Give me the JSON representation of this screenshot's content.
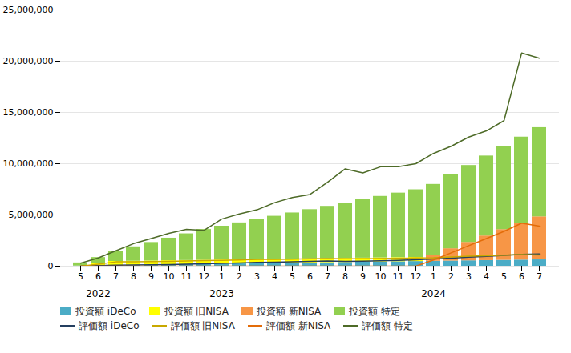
{
  "chart_data": {
    "type": "bar",
    "stacked": true,
    "grid": true,
    "legend": "bottom",
    "categories": [
      "5",
      "6",
      "7",
      "8",
      "9",
      "10",
      "11",
      "12",
      "1",
      "2",
      "3",
      "4",
      "5",
      "6",
      "7",
      "8",
      "9",
      "10",
      "11",
      "12",
      "1",
      "2",
      "3",
      "4",
      "5",
      "6",
      "7"
    ],
    "annotations": [
      {
        "text": "2022",
        "x": 1
      },
      {
        "text": "2023",
        "x": 8
      },
      {
        "text": "2024",
        "x": 20
      }
    ],
    "ylim": [
      0,
      25000000
    ],
    "yticks": [
      0,
      {
        "value": 5000000,
        "label": "5,000,000"
      },
      {
        "value": 10000000,
        "label": "10,000,000"
      },
      {
        "value": 15000000,
        "label": "15,000,000"
      },
      {
        "value": 20000000,
        "label": "20,000,000"
      },
      {
        "value": 25000000,
        "label": "25,000,000"
      }
    ],
    "series": [
      {
        "name": "投資額 iDeCo",
        "type": "bar",
        "color": "#4bacc6",
        "values": [
          23000,
          46000,
          69000,
          92000,
          115000,
          138000,
          161000,
          184000,
          207000,
          230000,
          253000,
          276000,
          299000,
          322000,
          345000,
          368000,
          391000,
          414000,
          437000,
          460000,
          483000,
          506000,
          529000,
          552000,
          575000,
          598000,
          621000
        ]
      },
      {
        "name": "投資額 旧NISA",
        "type": "bar",
        "color": "#ffff00",
        "values": [
          0,
          200000,
          400000,
          400000,
          400000,
          400000,
          400000,
          400000,
          400000,
          400000,
          400000,
          400000,
          400000,
          400000,
          400000,
          400000,
          400000,
          400000,
          400000,
          400000,
          0,
          0,
          0,
          0,
          0,
          0,
          0
        ]
      },
      {
        "name": "投資額 新NISA",
        "type": "bar",
        "color": "#f79646",
        "values": [
          0,
          0,
          0,
          0,
          0,
          0,
          0,
          0,
          0,
          0,
          0,
          0,
          0,
          0,
          0,
          0,
          0,
          0,
          0,
          0,
          600000,
          1200000,
          1800000,
          2400000,
          3000000,
          3600000,
          4200000
        ]
      },
      {
        "name": "投資額 特定",
        "type": "bar",
        "color": "#92d050",
        "values": [
          300000,
          600000,
          1000000,
          1400000,
          1800000,
          2200000,
          2600000,
          3000000,
          3300000,
          3600000,
          3900000,
          4200000,
          4500000,
          4800000,
          5100000,
          5400000,
          5700000,
          6000000,
          6300000,
          6600000,
          6900000,
          7200000,
          7500000,
          7800000,
          8100000,
          8400000,
          8700000
        ]
      },
      {
        "name": "評価額 iDeCo",
        "type": "line",
        "color": "#243f60",
        "values": [
          24000,
          60000,
          100000,
          120000,
          130000,
          160000,
          200000,
          230000,
          270000,
          320000,
          380000,
          400000,
          430000,
          460000,
          500000,
          470000,
          490000,
          530000,
          560000,
          620000,
          700000,
          780000,
          870000,
          950000,
          1050000,
          1150000,
          1200000
        ]
      },
      {
        "name": "評価額 旧NISA",
        "type": "line",
        "color": "#c8a800",
        "values": [
          0,
          200000,
          420000,
          430000,
          440000,
          470000,
          510000,
          540000,
          570000,
          610000,
          660000,
          670000,
          690000,
          720000,
          750000,
          720000,
          730000,
          750000,
          760000,
          800000,
          820000,
          890000,
          970000,
          1010000,
          1070000,
          1130000,
          1100000
        ]
      },
      {
        "name": "評価額 新NISA",
        "type": "line",
        "color": "#e36c09",
        "values": [
          0,
          0,
          0,
          0,
          0,
          0,
          0,
          0,
          0,
          0,
          0,
          0,
          0,
          0,
          0,
          0,
          0,
          0,
          0,
          0,
          610000,
          1300000,
          2000000,
          2700000,
          3400000,
          4200000,
          3900000
        ]
      },
      {
        "name": "評価額 特定",
        "type": "line",
        "color": "#4e6b28",
        "values": [
          300000,
          800000,
          1500000,
          2200000,
          2700000,
          3200000,
          3600000,
          3500000,
          4600000,
          5100000,
          5500000,
          6200000,
          6700000,
          7000000,
          8200000,
          9500000,
          9100000,
          9700000,
          9700000,
          10000000,
          11000000,
          11700000,
          12600000,
          13200000,
          14200000,
          20800000,
          20300000
        ]
      }
    ]
  }
}
